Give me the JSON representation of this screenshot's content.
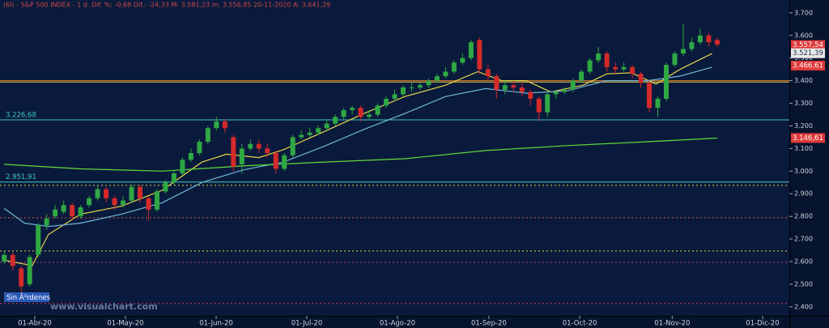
{
  "chart_data": {
    "type": "candlestick",
    "header": "(6I) - S&P 500 INDEX - 1 d. Dif. %: -0,68  Dif.: -24,33  M: 3.581,23  m: 3.556,85  20-11-2020  A: 3.641,29",
    "badge": "Sin Ã³rdenes",
    "watermark": "www.visualchart.com",
    "up_color": "#2fa844",
    "down_color": "#d42a2a",
    "open": [
      2600,
      2630,
      2570,
      2500,
      2630,
      2760,
      2800,
      2820,
      2850,
      2800,
      2850,
      2880,
      2920,
      2880,
      2850,
      2870,
      2930,
      2880,
      2830,
      2910,
      2950,
      2990,
      3050,
      3080,
      3130,
      3190,
      3220,
      3150,
      3030,
      3100,
      3120,
      3100,
      3080,
      3010,
      3070,
      3150,
      3160,
      3170,
      3190,
      3210,
      3240,
      3270,
      3280,
      3240,
      3250,
      3290,
      3320,
      3340,
      3370,
      3370,
      3380,
      3400,
      3420,
      3440,
      3480,
      3500,
      3580,
      3450,
      3420,
      3360,
      3380,
      3370,
      3350,
      3320,
      3260,
      3340,
      3350,
      3360,
      3400,
      3440,
      3490,
      3520,
      3460,
      3450,
      3460,
      3430,
      3390,
      3280,
      3320,
      3470,
      3520,
      3540,
      3570,
      3600,
      3580
    ],
    "high": [
      2650,
      2640,
      2580,
      2630,
      2770,
      2810,
      2850,
      2870,
      2860,
      2850,
      2890,
      2940,
      2930,
      2890,
      2890,
      2940,
      2940,
      2890,
      2920,
      2960,
      3000,
      3060,
      3100,
      3140,
      3200,
      3240,
      3230,
      3160,
      3120,
      3140,
      3140,
      3120,
      3090,
      3080,
      3160,
      3180,
      3190,
      3200,
      3230,
      3250,
      3280,
      3290,
      3290,
      3270,
      3300,
      3330,
      3360,
      3380,
      3390,
      3390,
      3410,
      3430,
      3460,
      3490,
      3520,
      3580,
      3590,
      3470,
      3430,
      3400,
      3400,
      3390,
      3360,
      3330,
      3350,
      3360,
      3370,
      3410,
      3450,
      3500,
      3550,
      3530,
      3480,
      3480,
      3470,
      3440,
      3400,
      3330,
      3480,
      3530,
      3650,
      3590,
      3630,
      3610,
      3590
    ],
    "low": [
      2590,
      2560,
      2450,
      2490,
      2620,
      2740,
      2790,
      2810,
      2780,
      2790,
      2840,
      2870,
      2860,
      2830,
      2840,
      2860,
      2860,
      2780,
      2820,
      2900,
      2940,
      2980,
      3040,
      3070,
      3120,
      3180,
      3170,
      3000,
      2990,
      3090,
      3080,
      3060,
      2990,
      3000,
      3060,
      3140,
      3150,
      3160,
      3180,
      3200,
      3230,
      3250,
      3220,
      3230,
      3240,
      3280,
      3310,
      3330,
      3350,
      3360,
      3370,
      3390,
      3410,
      3430,
      3470,
      3490,
      3430,
      3400,
      3320,
      3340,
      3350,
      3330,
      3290,
      3220,
      3240,
      3320,
      3340,
      3350,
      3390,
      3430,
      3480,
      3440,
      3430,
      3440,
      3410,
      3370,
      3260,
      3240,
      3310,
      3460,
      3510,
      3530,
      3560,
      3550,
      3550
    ],
    "close": [
      2630,
      2580,
      2490,
      2620,
      2760,
      2790,
      2830,
      2850,
      2800,
      2840,
      2880,
      2920,
      2880,
      2850,
      2870,
      2930,
      2880,
      2830,
      2910,
      2950,
      2990,
      3050,
      3080,
      3130,
      3190,
      3220,
      3190,
      3020,
      3100,
      3120,
      3100,
      3080,
      3010,
      3070,
      3150,
      3160,
      3170,
      3190,
      3210,
      3240,
      3270,
      3280,
      3240,
      3250,
      3290,
      3320,
      3340,
      3370,
      3370,
      3380,
      3400,
      3420,
      3440,
      3480,
      3500,
      3570,
      3450,
      3420,
      3360,
      3380,
      3370,
      3350,
      3320,
      3260,
      3340,
      3350,
      3360,
      3400,
      3440,
      3490,
      3520,
      3460,
      3450,
      3460,
      3430,
      3390,
      3280,
      3320,
      3470,
      3520,
      3540,
      3570,
      3600,
      3570,
      3560
    ],
    "averages": [
      {
        "color": "#e8d44a",
        "x": [
          0.26,
          3.3,
          5.2,
          9.0,
          13.8,
          18.6,
          23.3,
          26.2,
          30.0,
          32.9,
          37.7,
          42.4,
          47.2,
          52.0,
          55.8,
          58.6,
          61.5,
          64.4,
          68.2,
          71.0,
          73.9,
          76.8,
          79.6,
          83.4
        ],
        "values": [
          2604,
          2582,
          2720,
          2810,
          2845,
          2915,
          3040,
          3075,
          3060,
          3095,
          3175,
          3255,
          3330,
          3380,
          3440,
          3400,
          3400,
          3350,
          3380,
          3430,
          3435,
          3385,
          3450,
          3520
        ]
      },
      {
        "color": "#6fb7d8",
        "x": [
          0,
          2.4,
          5.2,
          9.0,
          13.8,
          18.6,
          23.3,
          28.1,
          32.9,
          37.7,
          42.4,
          47.2,
          52.0,
          56.7,
          61.5,
          66.3,
          71.0,
          75.8,
          79.6,
          83.4
        ],
        "values": [
          2835,
          2770,
          2755,
          2770,
          2810,
          2860,
          2950,
          3005,
          3040,
          3110,
          3185,
          3255,
          3330,
          3365,
          3345,
          3355,
          3400,
          3400,
          3420,
          3460
        ]
      },
      {
        "color": "#5fdc3c",
        "x": [
          0,
          9.0,
          18.6,
          28.1,
          37.7,
          47.2,
          56.7,
          66.3,
          75.8,
          84
        ],
        "values": [
          3030,
          3010,
          3000,
          3023,
          3040,
          3055,
          3091,
          3113,
          3130,
          3146
        ]
      }
    ],
    "levels": [
      {
        "value": 3400,
        "color": "#e07a2a",
        "dash": false
      },
      {
        "value": 3394,
        "color": "#e8d44a",
        "dash": false
      },
      {
        "value": 3226.68,
        "label": "3.226,68",
        "color": "#3fc8c0",
        "dash": false
      },
      {
        "value": 2951.91,
        "label": "2.951,91",
        "color": "#3fc8c0",
        "dash": false
      },
      {
        "value": 2937,
        "color": "#e8d44a",
        "dash": true
      },
      {
        "value": 2794,
        "color": "#e05a3a",
        "dash": true
      },
      {
        "value": 2647,
        "color": "#e8d44a",
        "dash": true
      },
      {
        "value": 2597,
        "color": "#d03a9a",
        "dash": true
      },
      {
        "value": 2414,
        "color": "#e03a5a",
        "dash": true
      }
    ],
    "price_tags": [
      {
        "value": 3557.54,
        "label": "3.557,54",
        "color": "#e03a3a"
      },
      {
        "value": 3521.39,
        "label": "3.521,39",
        "color": "#e8e8e8"
      },
      {
        "value": 3466.61,
        "label": "3.466,61",
        "color": "#e03a3a"
      },
      {
        "value": 3146.61,
        "label": "3.146,61",
        "color": "#e03a3a"
      }
    ],
    "xlim": [
      -0.5,
      92.5
    ],
    "xticks": [
      {
        "value": 3.6,
        "label": "01-Abr-20"
      },
      {
        "value": 14.28,
        "label": "01-May-20"
      },
      {
        "value": 24.97,
        "label": "01-Jun-20"
      },
      {
        "value": 35.65,
        "label": "01-Jul-20"
      },
      {
        "value": 46.33,
        "label": "01-Ago-20"
      },
      {
        "value": 57.1,
        "label": "01-Sep-20"
      },
      {
        "value": 67.8,
        "label": "01-Oct-20"
      },
      {
        "value": 78.7,
        "label": "01-Nov-20"
      },
      {
        "value": 89.35,
        "label": "01-Dic-20"
      }
    ],
    "ylim": [
      2360,
      3721
    ],
    "yticks": [
      {
        "value": 2400,
        "label": "2.400"
      },
      {
        "value": 2500,
        "label": "2.500"
      },
      {
        "value": 2600,
        "label": "2.600"
      },
      {
        "value": 2700,
        "label": "2.700"
      },
      {
        "value": 2800,
        "label": "2.800"
      },
      {
        "value": 2900,
        "label": "2.900"
      },
      {
        "value": 3000,
        "label": "3.000"
      },
      {
        "value": 3100,
        "label": "3.100"
      },
      {
        "value": 3200,
        "label": "3.200"
      },
      {
        "value": 3300,
        "label": "3.300"
      },
      {
        "value": 3400,
        "label": "3.400"
      },
      {
        "value": 3500,
        "label": "3.500"
      },
      {
        "value": 3600,
        "label": "3.600"
      },
      {
        "value": 3700,
        "label": "3.700"
      }
    ]
  }
}
